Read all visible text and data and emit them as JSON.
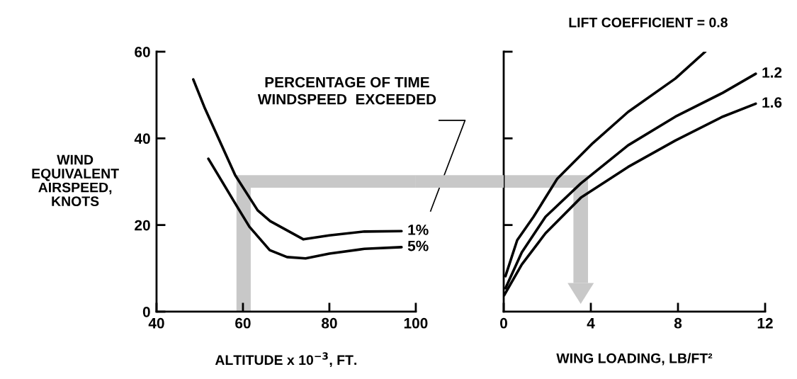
{
  "chart_data": [
    {
      "type": "line",
      "xlabel": "ALTITUDE x 10$^{−3}$, FT.",
      "ylabel": "WIND\nEQUIVALENT\nAIRSPEED,\nKNOTS",
      "xlim": [
        40,
        100
      ],
      "ylim": [
        0,
        60
      ],
      "xticks": [
        40,
        60,
        80,
        100
      ],
      "yticks": [
        0,
        20,
        40,
        60
      ],
      "grid": false,
      "series": [
        {
          "name": "1%",
          "color": "#000000",
          "x": [
            48.5,
            51.2,
            58.2,
            63.4,
            66.3,
            74,
            80,
            88.1,
            96.7
          ],
          "values": [
            53.6,
            46.9,
            31.5,
            23.4,
            20.9,
            16.7,
            17.6,
            18.5,
            18.6
          ]
        },
        {
          "name": "5%",
          "color": "#000000",
          "x": [
            52,
            58.2,
            61.5,
            66.2,
            70.2,
            74.5,
            80,
            88.1,
            96.7
          ],
          "values": [
            35.3,
            25,
            19.6,
            14.2,
            12.6,
            12.3,
            13.4,
            14.5,
            14.9
          ]
        }
      ],
      "bands": [
        {
          "axis": "y",
          "from": 28.6,
          "to": 31.5,
          "color": "#c8c8c8"
        },
        {
          "axis": "x",
          "from": 58.5,
          "to": 61.8,
          "color": "#c8c8c8"
        }
      ],
      "annotations": [
        "PERCENTAGE OF TIME\nWINDSPEED  EXCEEDED"
      ]
    },
    {
      "type": "line",
      "xlabel": "WING LOADING, LB/FT²",
      "tick_labels": "x",
      "xlim": [
        0,
        12
      ],
      "ylim": [
        0,
        60
      ],
      "xticks": [
        0,
        4,
        8,
        12
      ],
      "yticks": [
        {
          "value": 20,
          "label": null
        },
        {
          "value": 40,
          "label": null
        },
        {
          "value": 60,
          "label": null
        }
      ],
      "grid": false,
      "series": [
        {
          "name": "LIFT COEFFICIENT = 0.8",
          "color": "#000000",
          "x": [
            0.08,
            0.62,
            1.37,
            2.46,
            4.09,
            5.71,
            7.88,
            9.25
          ],
          "values": [
            8.2,
            16.5,
            21.9,
            30.7,
            38.9,
            46.1,
            53.8,
            60.0
          ]
        },
        {
          "name": "1.2",
          "color": "#000000",
          "x": [
            0.08,
            0.83,
            1.92,
            3.54,
            5.71,
            7.88,
            10.05,
            11.57
          ],
          "values": [
            5.4,
            13.7,
            21.9,
            29.6,
            38.4,
            45.0,
            50.5,
            54.9
          ]
        },
        {
          "name": "1.6",
          "color": "#000000",
          "x": [
            0.02,
            0.83,
            1.92,
            3.54,
            5.71,
            7.88,
            10.05,
            11.57
          ],
          "values": [
            3.8,
            10.9,
            18.1,
            26.3,
            33.4,
            39.5,
            45.0,
            48.0
          ]
        }
      ],
      "bands": [
        {
          "axis": "y",
          "from": 28.6,
          "to": 31.5,
          "color": "#c8c8c8"
        },
        {
          "axis": "x",
          "from": 3.2,
          "to": 3.87,
          "color": "#c8c8c8"
        }
      ]
    }
  ]
}
